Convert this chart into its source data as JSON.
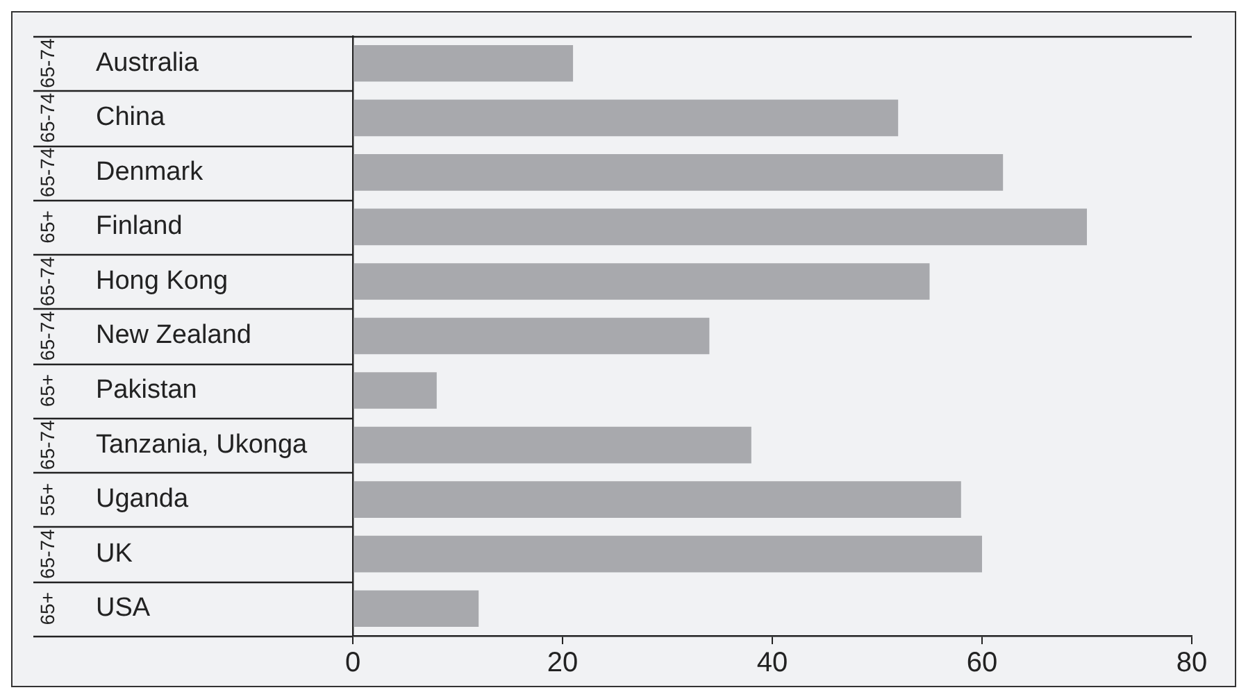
{
  "chart_data": {
    "type": "bar",
    "orientation": "horizontal",
    "categories": [
      "Australia",
      "China",
      "Denmark",
      "Finland",
      "Hong Kong",
      "New Zealand",
      "Pakistan",
      "Tanzania, Ukonga",
      "Uganda",
      "UK",
      "USA"
    ],
    "values": [
      21,
      52,
      62,
      70,
      55,
      34,
      8,
      38,
      58,
      60,
      12
    ],
    "color": "#a8a9ad",
    "xlim": [
      0,
      80
    ],
    "xticks": [
      0,
      20,
      40,
      60,
      80
    ],
    "grid": false,
    "legend": false,
    "annotations": [
      "65-74",
      "65-74",
      "65-74",
      "65+",
      "65-74",
      "65-74",
      "65+",
      "65-74",
      "55+",
      "65-74",
      "65+"
    ]
  }
}
